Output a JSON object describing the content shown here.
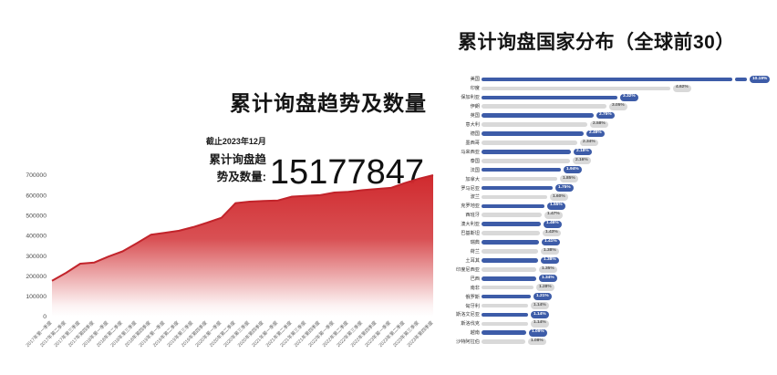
{
  "colors": {
    "bar_blue": "#3d5ca8",
    "bar_gray": "#d9d9d9",
    "badge_gray_bg": "#d9d9d9",
    "badge_gray_text": "#555555",
    "badge_blue_text": "#ffffff",
    "area_red": "#d02a2e",
    "area_red_fade": "#ffffff",
    "line_red": "#c2242b",
    "axis_text": "#4a4a4a",
    "xlabel_text": "#666666"
  },
  "left_chart": {
    "title": "累计询盘趋势及数量",
    "as_of": "截止2023年12月",
    "stat_label": "累计询盘趋势及数量:",
    "stat_value": "15177847"
  },
  "right_chart": {
    "title": "累计询盘国家分布（全球前30）"
  },
  "chart_data": [
    {
      "type": "area",
      "title": "累计询盘趋势及数量",
      "xlabel": "",
      "ylabel": "",
      "ylim": [
        0,
        700000
      ],
      "yticks": [
        0,
        100000,
        200000,
        300000,
        400000,
        500000,
        600000,
        700000
      ],
      "grid": false,
      "legend": false,
      "categories": [
        "2017年第一季度",
        "2017年第二季度",
        "2017年第三季度",
        "2017年第四季度",
        "2018年第一季度",
        "2018年第二季度",
        "2018年第三季度",
        "2018年第四季度",
        "2019年第一季度",
        "2019年第二季度",
        "2019年第三季度",
        "2019年第四季度",
        "2020年第一季度",
        "2020年第二季度",
        "2020年第三季度",
        "2020年第四季度",
        "2021年第一季度",
        "2021年第二季度",
        "2021年第三季度",
        "2021年第四季度",
        "2022年第一季度",
        "2022年第二季度",
        "2022年第三季度",
        "2022年第四季度",
        "2023年第一季度",
        "2023年第二季度",
        "2023年第三季度",
        "2023年第四季度"
      ],
      "values": [
        177000,
        217000,
        262000,
        268000,
        297000,
        323000,
        363000,
        405000,
        415000,
        425000,
        443000,
        465000,
        489000,
        562000,
        569000,
        572000,
        575000,
        594000,
        598000,
        601000,
        614000,
        618000,
        626000,
        632000,
        637000,
        661000,
        683000,
        700000
      ]
    },
    {
      "type": "bar",
      "orientation": "horizontal",
      "title": "累计询盘国家分布（全球前30）",
      "axis_break_on_first_bar": true,
      "categories": [
        "美国",
        "印度",
        "保加利亚",
        "伊朗",
        "英国",
        "意大利",
        "德国",
        "墨西哥",
        "马来西亚",
        "泰国",
        "法国",
        "加拿大",
        "罗马尼亚",
        "波兰",
        "克罗地亚",
        "西班牙",
        "澳大利亚",
        "巴基斯坦",
        "瑞典",
        "荷兰",
        "土耳其",
        "印度尼西亚",
        "巴西",
        "南非",
        "俄罗斯",
        "匈牙利",
        "斯洛文尼亚",
        "斯洛伐克",
        "越南",
        "沙特阿拉伯"
      ],
      "values": [
        10.19,
        4.62,
        3.32,
        3.05,
        2.75,
        2.58,
        2.49,
        2.34,
        2.18,
        2.16,
        1.94,
        1.85,
        1.75,
        1.6,
        1.55,
        1.47,
        1.46,
        1.43,
        1.41,
        1.38,
        1.38,
        1.35,
        1.34,
        1.28,
        1.21,
        1.14,
        1.14,
        1.14,
        1.09,
        1.08
      ],
      "labels": [
        "10.19%",
        "4.62%",
        "3.32%",
        "3.05%",
        "2.75%",
        "2.58%",
        "2.49%",
        "2.34%",
        "2.18%",
        "2.16%",
        "1.94%",
        "1.85%",
        "1.75%",
        "1.60%",
        "1.55%",
        "1.47%",
        "1.46%",
        "1.43%",
        "1.41%",
        "1.38%",
        "1.38%",
        "1.35%",
        "1.34%",
        "1.28%",
        "1.21%",
        "1.14%",
        "1.14%",
        "1.14%",
        "1.09%",
        "1.08%"
      ]
    }
  ]
}
